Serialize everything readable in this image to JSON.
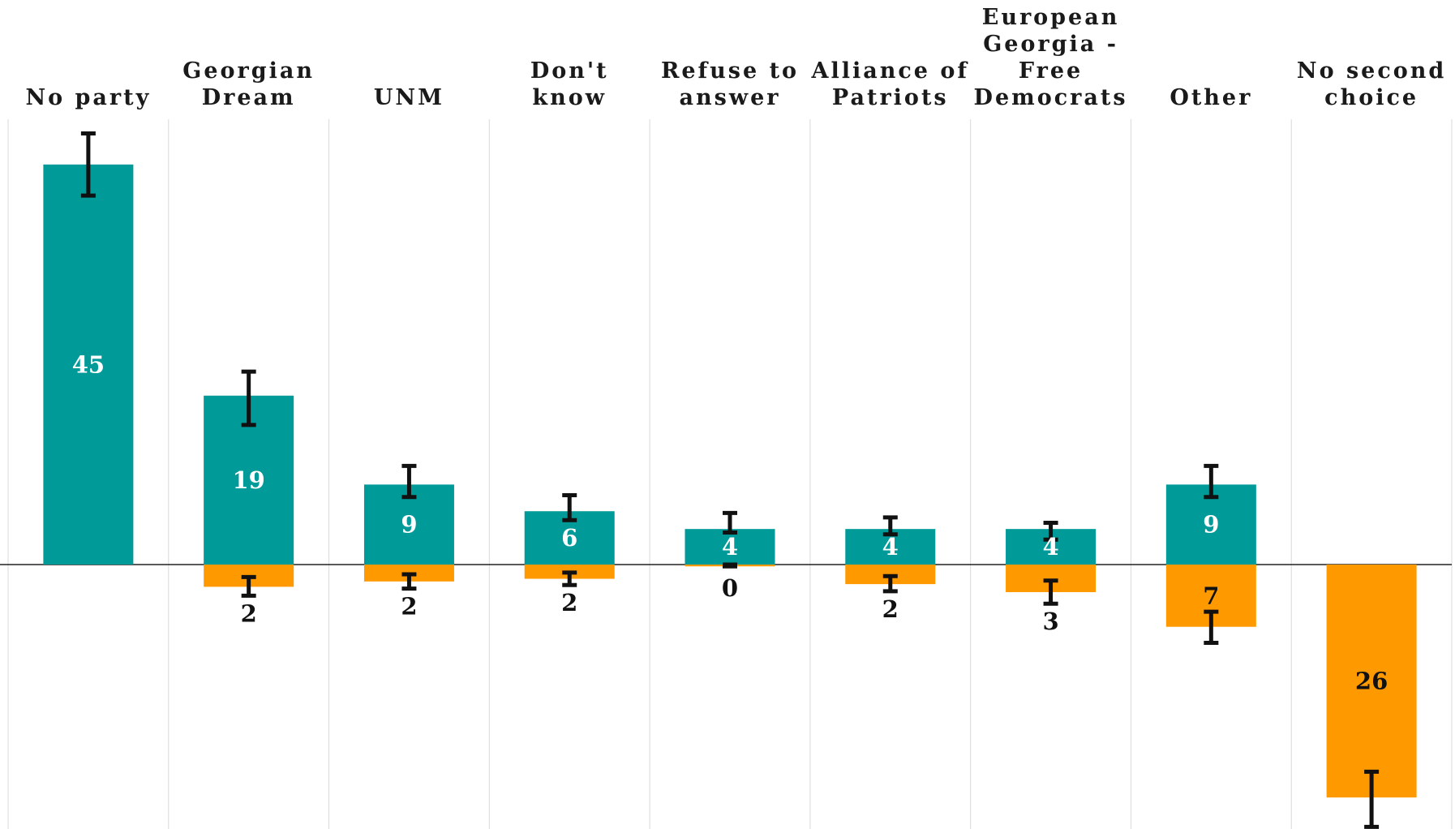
{
  "chart_data": {
    "type": "bar",
    "title": "",
    "xlabel": "",
    "ylabel": "",
    "ylim": [
      -29.5,
      50.5
    ],
    "grid": "vertical separators between categories",
    "legend": "none",
    "categories": [
      [
        "No party"
      ],
      [
        "Georgian",
        "Dream"
      ],
      [
        "UNM"
      ],
      [
        "Don't",
        "know"
      ],
      [
        "Refuse to",
        "answer"
      ],
      [
        "Alliance of",
        "Patriots"
      ],
      [
        "European",
        "Georgia -",
        "Free",
        "Democrats"
      ],
      [
        "Other"
      ],
      [
        "No second",
        "choice"
      ]
    ],
    "series": [
      {
        "color": "#009a98",
        "values": [
          45,
          19,
          9,
          6,
          4,
          4,
          4,
          9,
          null
        ],
        "labels": [
          "45",
          "19",
          "9",
          "6",
          "4",
          "4",
          "4",
          "9",
          null
        ],
        "error_bars": [
          [
            41.5,
            48.5
          ],
          [
            15.7,
            21.7
          ],
          [
            7.6,
            11.1
          ],
          [
            5.0,
            7.8
          ],
          [
            3.6,
            5.8
          ],
          [
            3.4,
            5.3
          ],
          [
            2.8,
            4.7
          ],
          [
            7.6,
            11.1
          ],
          null
        ]
      },
      {
        "color": "#ff9900",
        "values": [
          null,
          -2.5,
          -1.9,
          -1.6,
          -0.2,
          -2.2,
          -3.1,
          -7.0,
          -26.2
        ],
        "labels": [
          null,
          "2",
          "2",
          "2",
          "0",
          "2",
          "3",
          "7",
          "26"
        ],
        "error_bars": [
          null,
          [
            -1.4,
            -3.5
          ],
          [
            -1.1,
            -2.7
          ],
          [
            -0.9,
            -2.3
          ],
          [
            0,
            -0.2
          ],
          [
            -1.3,
            -3.0
          ],
          [
            -1.8,
            -4.4
          ],
          [
            -5.3,
            -8.8
          ],
          [
            -23.3,
            -29.5
          ]
        ]
      }
    ]
  }
}
